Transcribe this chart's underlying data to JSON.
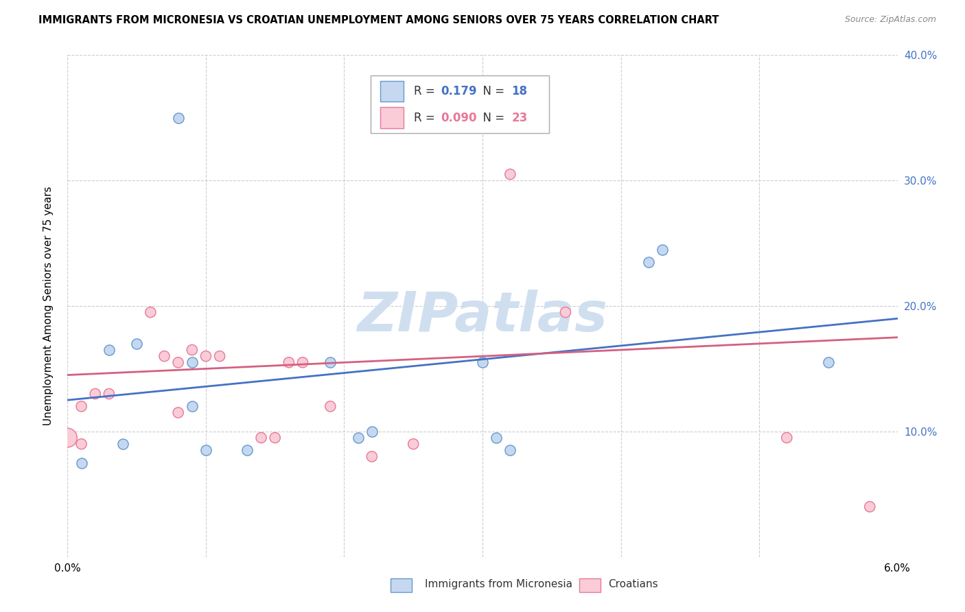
{
  "title": "IMMIGRANTS FROM MICRONESIA VS CROATIAN UNEMPLOYMENT AMONG SENIORS OVER 75 YEARS CORRELATION CHART",
  "source": "Source: ZipAtlas.com",
  "ylabel": "Unemployment Among Seniors over 75 years",
  "legend_blue_R": "0.179",
  "legend_blue_N": "18",
  "legend_pink_R": "0.090",
  "legend_pink_N": "23",
  "legend_blue_label": "Immigrants from Micronesia",
  "legend_pink_label": "Croatians",
  "blue_scatter_x": [
    0.001,
    0.003,
    0.004,
    0.005,
    0.008,
    0.009,
    0.009,
    0.01,
    0.013,
    0.019,
    0.021,
    0.022,
    0.03,
    0.031,
    0.032,
    0.042,
    0.043,
    0.055
  ],
  "blue_scatter_y": [
    0.075,
    0.165,
    0.09,
    0.17,
    0.35,
    0.155,
    0.12,
    0.085,
    0.085,
    0.155,
    0.095,
    0.1,
    0.155,
    0.095,
    0.085,
    0.235,
    0.245,
    0.155
  ],
  "blue_scatter_size": 120,
  "pink_scatter_x": [
    0.0,
    0.001,
    0.001,
    0.002,
    0.003,
    0.006,
    0.007,
    0.008,
    0.008,
    0.009,
    0.01,
    0.011,
    0.014,
    0.015,
    0.016,
    0.017,
    0.019,
    0.022,
    0.025,
    0.032,
    0.036,
    0.052,
    0.058
  ],
  "pink_scatter_y": [
    0.095,
    0.12,
    0.09,
    0.13,
    0.13,
    0.195,
    0.16,
    0.155,
    0.115,
    0.165,
    0.16,
    0.16,
    0.095,
    0.095,
    0.155,
    0.155,
    0.12,
    0.08,
    0.09,
    0.305,
    0.195,
    0.095,
    0.04
  ],
  "pink_scatter_size": 120,
  "pink_scatter_size_large": 400,
  "blue_line_x": [
    0.0,
    0.06
  ],
  "blue_line_y": [
    0.125,
    0.19
  ],
  "pink_line_x": [
    0.0,
    0.06
  ],
  "pink_line_y": [
    0.145,
    0.175
  ],
  "blue_color": "#c5d8f0",
  "blue_edge_color": "#6699cc",
  "pink_color": "#f9ccd8",
  "pink_edge_color": "#e87898",
  "blue_line_color": "#4472c4",
  "pink_line_color": "#d46080",
  "watermark": "ZIPatlas",
  "watermark_color": "#d0dff0",
  "background_color": "#ffffff",
  "grid_color": "#cccccc",
  "xlim": [
    0.0,
    0.06
  ],
  "ylim": [
    0.0,
    0.4
  ]
}
